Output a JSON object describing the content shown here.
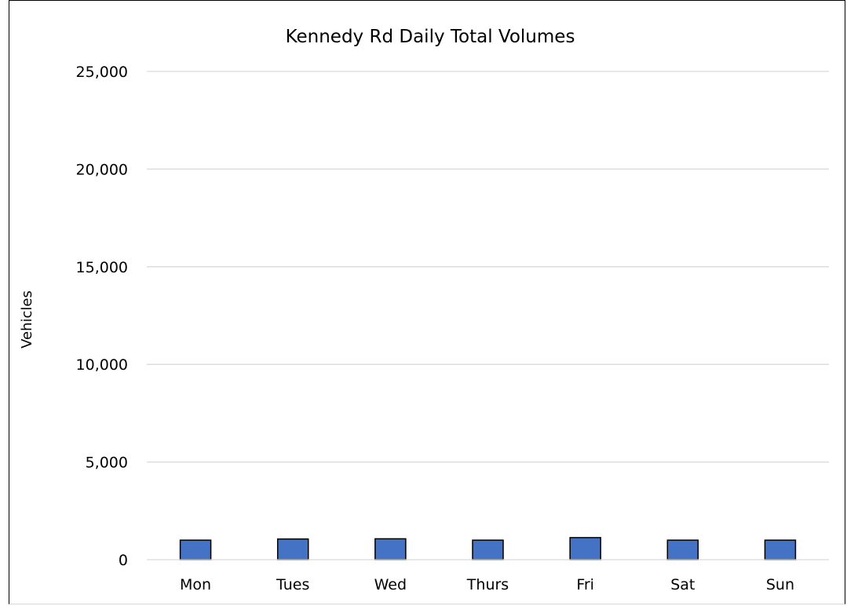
{
  "chart_data": {
    "type": "bar",
    "title": "Kennedy Rd Daily Total Volumes",
    "xlabel": "",
    "ylabel": "Vehicles",
    "categories": [
      "Mon",
      "Tues",
      "Wed",
      "Thurs",
      "Fri",
      "Sat",
      "Sun"
    ],
    "values": [
      1000,
      1060,
      1070,
      1000,
      1130,
      1000,
      1000
    ],
    "ylim": [
      0,
      25000
    ],
    "yticks": [
      0,
      5000,
      10000,
      15000,
      20000,
      25000
    ],
    "ytick_labels": [
      "0",
      "5,000",
      "10,000",
      "15,000",
      "20,000",
      "25,000"
    ],
    "grid": true,
    "legend": "none",
    "colors": {
      "bar_fill": "#4472c4",
      "bar_stroke": "#000000",
      "gridline": "#d9d9d9",
      "axis_line": "#d9d9d9",
      "text": "#000000"
    }
  }
}
